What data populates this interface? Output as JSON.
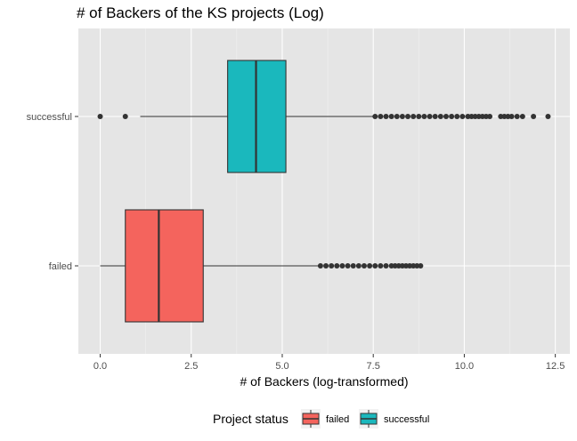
{
  "chart_data": {
    "type": "boxplot",
    "orientation": "horizontal",
    "title": "# of Backers of the KS projects (Log)",
    "xlabel": "# of Backers (log-transformed)",
    "ylabel": "",
    "xlim": [
      -0.6,
      12.9
    ],
    "x_ticks": [
      0.0,
      2.5,
      5.0,
      7.5,
      10.0,
      12.5
    ],
    "x_tick_labels": [
      "0.0",
      "2.5",
      "5.0",
      "7.5",
      "10.0",
      "12.5"
    ],
    "categories": [
      "successful",
      "failed"
    ],
    "grid": true,
    "background": "#E5E5E5",
    "legend": {
      "title": "Project status",
      "position": "bottom",
      "items": [
        "failed",
        "successful"
      ]
    },
    "series": [
      {
        "name": "successful",
        "color": "#1AB8BD",
        "whisker_low": 1.1,
        "q1": 3.5,
        "median": 4.28,
        "q3": 5.1,
        "whisker_high": 7.5,
        "outliers_low": [
          0.0,
          0.69
        ],
        "outliers_high": [
          7.55,
          7.7,
          7.85,
          8.0,
          8.15,
          8.3,
          8.45,
          8.6,
          8.75,
          8.9,
          9.05,
          9.2,
          9.35,
          9.5,
          9.65,
          9.8,
          9.95,
          10.1,
          10.2,
          10.3,
          10.4,
          10.5,
          10.6,
          10.7,
          11.0,
          11.1,
          11.2,
          11.3,
          11.45,
          11.6,
          11.9,
          12.3
        ]
      },
      {
        "name": "failed",
        "color": "#F4645D",
        "whisker_low": 0.0,
        "q1": 0.69,
        "median": 1.61,
        "q3": 2.83,
        "whisker_high": 6.0,
        "outliers_low": [],
        "outliers_high": [
          6.05,
          6.2,
          6.35,
          6.5,
          6.65,
          6.8,
          6.95,
          7.1,
          7.25,
          7.4,
          7.55,
          7.7,
          7.85,
          8.0,
          8.1,
          8.2,
          8.3,
          8.4,
          8.5,
          8.6,
          8.7,
          8.8
        ]
      }
    ]
  }
}
